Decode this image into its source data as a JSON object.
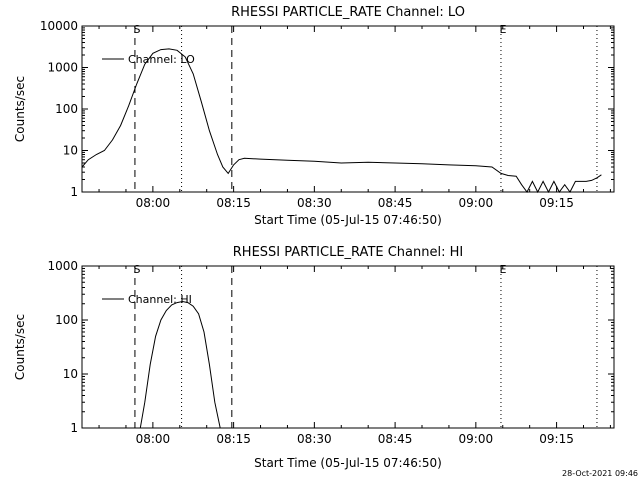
{
  "footer_timestamp": "28-Oct-2021 09:46",
  "chart_data": [
    {
      "type": "line",
      "title": "RHESSI PARTICLE_RATE Channel: LO",
      "xlabel": "Start Time (05-Jul-15 07:46:50)",
      "ylabel": "Counts/sec",
      "yscale": "log",
      "xlim": [
        "07:46:50",
        "09:25:40"
      ],
      "ylim": [
        1,
        10000
      ],
      "x_ticks": [
        "08:00",
        "08:15",
        "08:30",
        "08:45",
        "09:00",
        "09:15"
      ],
      "y_ticks": [
        "1",
        "10",
        "100",
        "1000",
        "10000"
      ],
      "legend": {
        "label": "Channel: LO",
        "placement": "top-left"
      },
      "markers": [
        {
          "time": "07:56:40",
          "label": "S",
          "style": "dashed"
        },
        {
          "time": "08:05:20",
          "label": "",
          "style": "dotted"
        },
        {
          "time": "08:14:40",
          "label": "",
          "style": "dashed"
        },
        {
          "time": "09:04:40",
          "label": "E",
          "style": "dotted"
        },
        {
          "time": "09:22:30",
          "label": "",
          "style": "dotted"
        }
      ],
      "series": [
        {
          "name": "Channel: LO",
          "x": [
            "07:46:50",
            "07:48:00",
            "07:49:30",
            "07:51:00",
            "07:52:30",
            "07:54:00",
            "07:55:30",
            "07:57:00",
            "07:58:30",
            "08:00:00",
            "08:01:30",
            "08:03:00",
            "08:04:30",
            "08:06:00",
            "08:07:30",
            "08:09:00",
            "08:10:30",
            "08:12:00",
            "08:13:00",
            "08:14:00",
            "08:15:00",
            "08:16:00",
            "08:17:00",
            "08:20:00",
            "08:25:00",
            "08:30:00",
            "08:35:00",
            "08:40:00",
            "08:45:00",
            "08:50:00",
            "08:55:00",
            "09:00:00",
            "09:03:00",
            "09:04:40",
            "09:06:00",
            "09:07:30",
            "09:08:30",
            "09:09:30",
            "09:10:30",
            "09:11:30",
            "09:12:30",
            "09:13:30",
            "09:14:30",
            "09:15:30",
            "09:16:30",
            "09:17:30",
            "09:18:30",
            "09:19:30",
            "09:20:30",
            "09:21:30",
            "09:22:30",
            "09:23:20"
          ],
          "values": [
            4,
            6,
            8,
            10,
            18,
            40,
            120,
            400,
            1200,
            2200,
            2700,
            2800,
            2600,
            1800,
            700,
            150,
            30,
            8,
            4,
            2.8,
            4.5,
            6,
            6.5,
            6.2,
            5.8,
            5.5,
            5,
            5.2,
            5,
            4.8,
            4.5,
            4.3,
            4,
            2.8,
            2.5,
            2.4,
            1.5,
            1,
            1.8,
            1,
            1.8,
            1,
            1.8,
            1,
            1.5,
            1,
            1.8,
            1.8,
            1.8,
            1.9,
            2.2,
            2.6
          ]
        }
      ]
    },
    {
      "type": "line",
      "title": "RHESSI PARTICLE_RATE Channel: HI",
      "xlabel": "Start Time (05-Jul-15 07:46:50)",
      "ylabel": "Counts/sec",
      "yscale": "log",
      "xlim": [
        "07:46:50",
        "09:25:40"
      ],
      "ylim": [
        1,
        1000
      ],
      "x_ticks": [
        "08:00",
        "08:15",
        "08:30",
        "08:45",
        "09:00",
        "09:15"
      ],
      "y_ticks": [
        "1",
        "10",
        "100",
        "1000"
      ],
      "legend": {
        "label": "Channel: HI",
        "placement": "top-left"
      },
      "markers": [
        {
          "time": "07:56:40",
          "label": "S",
          "style": "dashed"
        },
        {
          "time": "08:05:20",
          "label": "",
          "style": "dotted"
        },
        {
          "time": "08:14:40",
          "label": "",
          "style": "dashed"
        },
        {
          "time": "09:04:40",
          "label": "E",
          "style": "dotted"
        },
        {
          "time": "09:22:30",
          "label": "",
          "style": "dotted"
        }
      ],
      "series": [
        {
          "name": "Channel: HI",
          "x": [
            "07:57:40",
            "07:58:30",
            "07:59:30",
            "08:00:30",
            "08:01:30",
            "08:02:30",
            "08:03:30",
            "08:04:30",
            "08:05:30",
            "08:06:30",
            "08:07:30",
            "08:08:30",
            "08:09:30",
            "08:10:30",
            "08:11:30",
            "08:12:30"
          ],
          "values": [
            1,
            3,
            15,
            50,
            100,
            150,
            190,
            210,
            220,
            210,
            180,
            130,
            60,
            15,
            3,
            1
          ]
        }
      ]
    }
  ]
}
